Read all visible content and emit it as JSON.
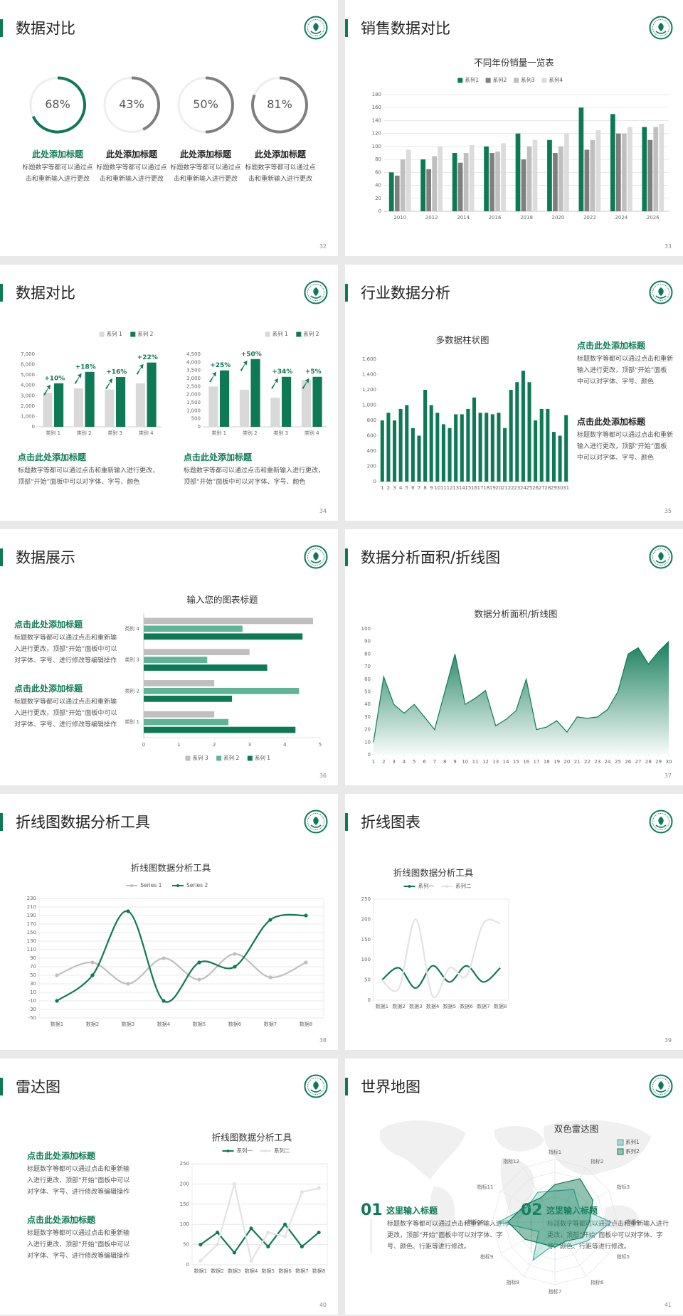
{
  "slides": [
    {
      "title": "数据对比",
      "page": "32",
      "blocks": [
        {
          "heading": "此处添加标题",
          "text": "标题数字等都可以通过点击和重新输入进行更改"
        },
        {
          "heading": "此处添加标题",
          "text": "标题数字等都可以通过点击和重新输入进行更改"
        },
        {
          "heading": "此处添加标题",
          "text": "标题数字等都可以通过点击和重新输入进行更改"
        },
        {
          "heading": "此处添加标题",
          "text": "标题数字等都可以通过点击和重新输入进行更改"
        }
      ]
    },
    {
      "title": "销售数据对比",
      "page": "33"
    },
    {
      "title": "数据对比",
      "page": "34",
      "blocks": [
        {
          "heading": "点击此处添加标题",
          "text": "标题数字等都可以通过点击和重新输入进行更改，顶部“开始”面板中可以对字体、字号、颜色"
        },
        {
          "heading": "点击此处添加标题",
          "text": "标题数字等都可以通过点击和重新输入进行更改，顶部“开始”面板中可以对字体、字号、颜色"
        }
      ]
    },
    {
      "title": "行业数据分析",
      "page": "35",
      "blocks": [
        {
          "heading": "点击此处添加标题",
          "text": "标题数字等都可以通过点击和重新输入进行更改，顶部“开始”面板中可以对字体、字号、颜色"
        },
        {
          "heading": "点击此处添加标题",
          "text": "标题数字等都可以通过点击和重新输入进行更改，顶部“开始”面板中可以对字体、字号、颜色"
        }
      ]
    },
    {
      "title": "数据展示",
      "page": "36",
      "blocks": [
        {
          "heading": "点击此处添加标题",
          "text": "标题数字等都可以通过点击和重新输入进行更改，顶部“开始”面板中可以对字体、字号、进行修改等编辑操作"
        },
        {
          "heading": "点击此处添加标题",
          "text": "标题数字等都可以通过点击和重新输入进行更改，顶部“开始”面板中可以对字体、字号、进行修改等编辑操作"
        }
      ]
    },
    {
      "title": "数据分析面积/折线图",
      "page": "37"
    },
    {
      "title": "折线图数据分析工具",
      "page": "38"
    },
    {
      "title": "折线图表",
      "page": "39"
    },
    {
      "title": "雷达图",
      "page": "40",
      "blocks": [
        {
          "heading": "点击此处添加标题",
          "text": "标题数字等都可以通过点击和重新输入进行更改，顶部“开始”面板中可以对字体、字号、进行修改等编辑操作"
        },
        {
          "heading": "点击此处添加标题",
          "text": "标题数字等都可以通过点击和重新输入进行更改，顶部“开始”面板中可以对字体、字号、进行修改等编辑操作"
        }
      ]
    },
    {
      "title": "世界地图",
      "page": "41",
      "blocks": [
        {
          "num": "01",
          "heading": "这里输入标题",
          "text": "标题数字等都可以通过点击和重新输入进行更改，顶部“开始”面板中可以对字体、字号、颜色、行距等进行修改。"
        },
        {
          "num": "02",
          "heading": "这里输入标题",
          "text": "标题数字等都可以通过点击和重新输入进行更改，顶部“开始”面板中可以对字体、字号、颜色、行距等进行修改。"
        }
      ]
    }
  ],
  "chart_data": [
    {
      "type": "donut",
      "values": [
        68,
        43,
        50,
        81
      ],
      "value_labels": [
        "68%",
        "43%",
        "50%",
        "81%"
      ],
      "ylim": [
        0,
        100
      ],
      "colors": [
        "#0e7a55",
        "#7f7f7f",
        "#7f7f7f",
        "#7f7f7f"
      ]
    },
    {
      "type": "bar",
      "title": "不同年份销量一览表",
      "legend": "top",
      "grid": true,
      "categories": [
        "2010",
        "2012",
        "2014",
        "2016",
        "2018",
        "2020",
        "2022",
        "2024",
        "2026"
      ],
      "series": [
        {
          "name": "系列1",
          "color": "#0e7a55",
          "values": [
            60,
            80,
            90,
            100,
            120,
            110,
            160,
            150,
            130
          ]
        },
        {
          "name": "系列2",
          "color": "#7f7f7f",
          "values": [
            55,
            65,
            75,
            90,
            80,
            90,
            95,
            120,
            110
          ]
        },
        {
          "name": "系列3",
          "color": "#bfbfbf",
          "values": [
            80,
            85,
            90,
            92,
            100,
            100,
            110,
            120,
            130
          ]
        },
        {
          "name": "系列4",
          "color": "#dcdcdc",
          "values": [
            95,
            100,
            102,
            105,
            110,
            120,
            125,
            130,
            135
          ]
        }
      ],
      "ylim": [
        0,
        180
      ],
      "yticks": [
        0,
        20,
        40,
        60,
        80,
        100,
        120,
        140,
        160,
        180
      ]
    },
    {
      "type": "bar",
      "legend": "top-right",
      "grid": false,
      "categories": [
        "类别 1",
        "类别 2",
        "类别 3",
        "类别 4"
      ],
      "series": [
        {
          "name": "系列 1",
          "color": "#d9d9d9",
          "values": [
            3300,
            3700,
            3600,
            4200
          ]
        },
        {
          "name": "系列 2",
          "color": "#0e7a55",
          "values": [
            4200,
            5300,
            4800,
            6200
          ]
        }
      ],
      "annotations": [
        "+10%",
        "+18%",
        "+16%",
        "+22%"
      ],
      "ylim": [
        0,
        7000
      ],
      "yticks": [
        0,
        {
          "value": 1000,
          "label": "1,000"
        },
        {
          "value": 2000,
          "label": "2,000"
        },
        {
          "value": 3000,
          "label": "3,000"
        },
        {
          "value": 4000,
          "label": "4,000"
        },
        {
          "value": 5000,
          "label": "5,000"
        },
        {
          "value": 6000,
          "label": "6,000"
        },
        {
          "value": 7000,
          "label": "7,000"
        }
      ]
    },
    {
      "type": "bar",
      "legend": "top-right",
      "grid": false,
      "categories": [
        "类别 1",
        "类别 2",
        "类别 3",
        "类别 4"
      ],
      "series": [
        {
          "name": "系列 1",
          "color": "#d9d9d9",
          "values": [
            2500,
            2300,
            1800,
            2900
          ]
        },
        {
          "name": "系列 2",
          "color": "#0e7a55",
          "values": [
            3500,
            4200,
            3100,
            3100
          ]
        }
      ],
      "annotations": [
        "+25%",
        "+50%",
        "+34%",
        "+5%"
      ],
      "ylim": [
        0,
        4500
      ],
      "yticks": [
        0,
        500,
        {
          "value": 1000,
          "label": "1,000"
        },
        {
          "value": 1500,
          "label": "1,500"
        },
        {
          "value": 2000,
          "label": "2,000"
        },
        {
          "value": 2500,
          "label": "2,500"
        },
        {
          "value": 3000,
          "label": "3,000"
        },
        {
          "value": 3500,
          "label": "3,500"
        },
        {
          "value": 4000,
          "label": "4,000"
        },
        {
          "value": 4500,
          "label": "4,500"
        }
      ]
    },
    {
      "type": "bar",
      "title": "多数据柱状图",
      "grid": false,
      "color": "#0e7a55",
      "categories": [
        "1",
        "2",
        "3",
        "4",
        "5",
        "6",
        "7",
        "8",
        "9",
        "10",
        "11",
        "12",
        "13",
        "14",
        "15",
        "16",
        "17",
        "18",
        "19",
        "20",
        "21",
        "22",
        "23",
        "24",
        "25",
        "26",
        "27",
        "28",
        "29",
        "30",
        "31"
      ],
      "values": [
        800,
        900,
        800,
        950,
        1000,
        700,
        600,
        1200,
        1000,
        900,
        750,
        700,
        880,
        880,
        950,
        1100,
        900,
        900,
        880,
        900,
        700,
        1200,
        1300,
        1450,
        1300,
        800,
        950,
        950,
        650,
        600,
        870
      ],
      "ylim": [
        0,
        1600
      ],
      "yticks": [
        0,
        200,
        400,
        600,
        800,
        {
          "value": 1000,
          "label": "1,000"
        },
        {
          "value": 1200,
          "label": "1,200"
        },
        {
          "value": 1400,
          "label": "1,400"
        },
        {
          "value": 1600,
          "label": "1,600"
        }
      ]
    },
    {
      "type": "hbar",
      "title": "输入您的图表标题",
      "legend": "bottom",
      "grid": false,
      "categories": [
        "类别 1",
        "类别 2",
        "类别 3",
        "类别 4"
      ],
      "series": [
        {
          "name": "系列 3",
          "color": "#bfbfbf",
          "values": [
            2,
            2,
            3,
            4.8
          ]
        },
        {
          "name": "系列 2",
          "color": "#5fb396",
          "values": [
            2.4,
            4.4,
            1.8,
            2.8
          ]
        },
        {
          "name": "系列 1",
          "color": "#0e7a55",
          "values": [
            4.3,
            2.5,
            3.5,
            4.5
          ]
        }
      ],
      "xlim": [
        0,
        5
      ],
      "xticks": [
        0,
        1,
        2,
        3,
        4,
        5
      ]
    },
    {
      "type": "area",
      "title": "数据分析面积/折线图",
      "color": "#0e7a55",
      "grid": false,
      "x": [
        1,
        2,
        3,
        4,
        5,
        6,
        7,
        8,
        9,
        10,
        11,
        12,
        13,
        14,
        15,
        16,
        17,
        18,
        19,
        20,
        21,
        22,
        23,
        24,
        25,
        26,
        27,
        28,
        29,
        30
      ],
      "values": [
        10,
        62,
        40,
        33,
        40,
        30,
        20,
        50,
        80,
        40,
        45,
        51,
        23,
        28,
        35,
        60,
        20,
        22,
        27,
        18,
        30,
        29,
        30,
        36,
        50,
        80,
        85,
        72,
        82,
        90
      ],
      "xlim": [
        1,
        30
      ],
      "xticks": [
        1,
        2,
        3,
        4,
        5,
        6,
        7,
        8,
        9,
        10,
        11,
        12,
        13,
        14,
        15,
        16,
        17,
        18,
        19,
        20,
        21,
        22,
        23,
        24,
        25,
        26,
        27,
        28,
        29,
        30
      ],
      "ylim": [
        0,
        100
      ],
      "yticks": [
        0,
        10,
        20,
        30,
        40,
        50,
        60,
        70,
        80,
        90,
        100
      ]
    },
    {
      "type": "line",
      "title": "折线图数据分析工具",
      "legend": "top",
      "grid": true,
      "smooth": true,
      "markers": true,
      "categories": [
        "数据1",
        "数据2",
        "数据3",
        "数据4",
        "数据5",
        "数据6",
        "数据7",
        "数据8"
      ],
      "series": [
        {
          "name": "Series 1",
          "color": "#bfbfbf",
          "values": [
            50,
            80,
            30,
            90,
            40,
            100,
            45,
            80
          ]
        },
        {
          "name": "Series 2",
          "color": "#0e7a55",
          "values": [
            -10,
            50,
            200,
            -10,
            80,
            70,
            180,
            190
          ]
        }
      ],
      "ylim": [
        -50,
        230
      ],
      "yticks": [
        -50,
        -30,
        -10,
        10,
        30,
        50,
        70,
        90,
        110,
        130,
        150,
        170,
        190,
        210,
        230
      ]
    },
    {
      "type": "line",
      "title": "折线图数据分析工具",
      "legend": "top",
      "grid": false,
      "smooth": true,
      "markers": false,
      "categories": [
        "数据1",
        "数据2",
        "数据3",
        "数据4",
        "数据5",
        "数据6",
        "数据7",
        "数据8"
      ],
      "series": [
        {
          "name": "系列一",
          "color": "#0e7a55",
          "values": [
            50,
            80,
            30,
            85,
            45,
            85,
            45,
            80
          ]
        },
        {
          "name": "系列二",
          "color": "#e3e3e3",
          "values": [
            50,
            30,
            200,
            10,
            80,
            60,
            190,
            190
          ]
        }
      ],
      "ylim": [
        0,
        250
      ],
      "yticks": [
        0,
        50,
        100,
        150,
        200,
        250
      ]
    },
    {
      "type": "line",
      "title": "折线图数据分析工具",
      "legend": "top",
      "grid": true,
      "smooth": false,
      "markers": true,
      "categories": [
        "数据1",
        "数据2",
        "数据3",
        "数据4",
        "数据5",
        "数据6",
        "数据7",
        "数据8"
      ],
      "series": [
        {
          "name": "系列一",
          "color": "#0e7a55",
          "values": [
            50,
            80,
            30,
            90,
            45,
            100,
            45,
            80
          ]
        },
        {
          "name": "系列二",
          "color": "#e3e3e3",
          "values": [
            10,
            50,
            200,
            10,
            80,
            70,
            180,
            190
          ]
        }
      ],
      "ylim": [
        0,
        250
      ],
      "yticks": [
        0,
        50,
        100,
        150,
        200,
        250
      ]
    },
    {
      "type": "radar",
      "title": "双色雷达图",
      "legend": "right",
      "categories": [
        "指标1",
        "指标2",
        "指标3",
        "指标4",
        "指标5",
        "指标6",
        "指标7",
        "指标8",
        "指标9",
        "指标10",
        "指标11",
        "指标12"
      ],
      "series": [
        {
          "name": "系列1",
          "color": "#3fb0a0",
          "values": [
            50,
            60,
            45,
            90,
            60,
            45,
            35,
            70,
            30,
            90,
            50,
            55
          ]
        },
        {
          "name": "系列2",
          "color": "#0e7a55",
          "values": [
            60,
            80,
            70,
            55,
            50,
            35,
            40,
            40,
            55,
            75,
            55,
            45
          ]
        }
      ],
      "ylim": [
        0,
        100
      ]
    }
  ]
}
